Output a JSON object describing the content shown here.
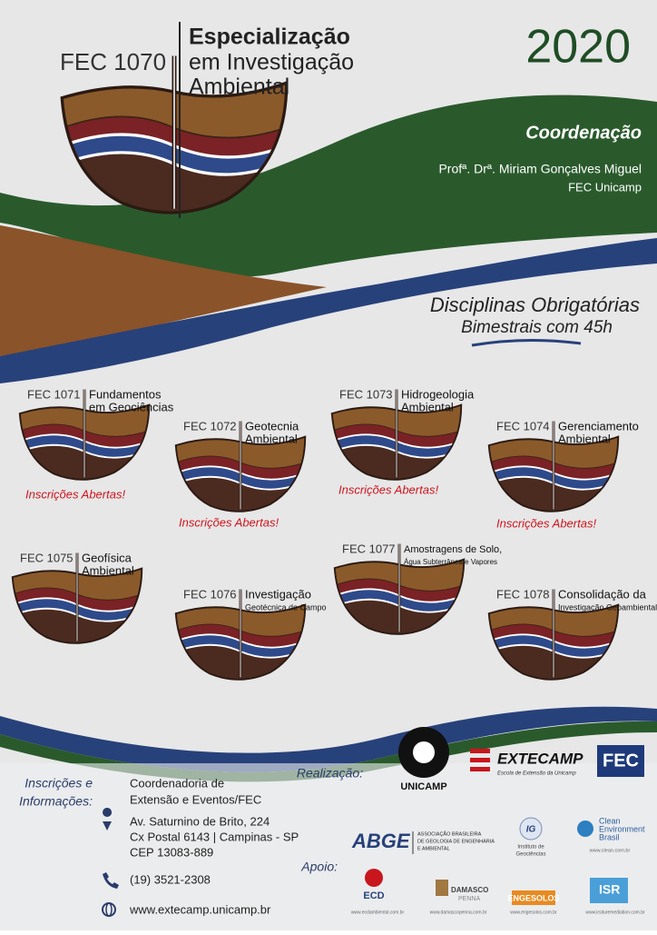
{
  "header": {
    "code": "FEC 1070",
    "title": [
      "Especialização",
      "em Investigação",
      "Ambiental"
    ],
    "year": "2020"
  },
  "coordination": {
    "label": "Coordenação",
    "name": "Profª. Drª. Miriam Gonçalves Miguel",
    "org": "FEC Unicamp"
  },
  "disciplines": {
    "title": "Disciplinas Obrigatórias",
    "subtitle": "Bimestrais com 45h"
  },
  "courses": [
    {
      "code": "FEC 1071",
      "name": [
        "Fundamentos",
        "em Geociências"
      ],
      "status": "Inscrições Abertas!"
    },
    {
      "code": "FEC 1072",
      "name": [
        "Geotecnia",
        "Ambiental"
      ],
      "status": "Inscrições Abertas!"
    },
    {
      "code": "FEC 1073",
      "name": [
        "Hidrogeologia",
        "Ambiental"
      ],
      "status": "Inscrições Abertas!"
    },
    {
      "code": "FEC 1074",
      "name": [
        "Gerenciamento",
        "Ambiental"
      ],
      "status": "Inscrições Abertas!"
    },
    {
      "code": "FEC 1075",
      "name": [
        "Geofísica",
        "Ambiental"
      ]
    },
    {
      "code": "FEC 1076",
      "name": [
        "Investigação",
        "Geotécnica de Campo"
      ]
    },
    {
      "code": "FEC 1077",
      "name": [
        "Amostragens de Solo,",
        "Água Subterrânea e Vapores"
      ]
    },
    {
      "code": "FEC 1078",
      "name": [
        "Consolidação da",
        "Investigação Geoambiental"
      ]
    }
  ],
  "contact": {
    "label": [
      "Inscrições e",
      "Informações:"
    ],
    "org": [
      "Coordenadoria de",
      "Extensão e Eventos/FEC"
    ],
    "address": [
      "Av. Saturnino de Brito, 224",
      "Cx Postal 6143 | Campinas - SP",
      "CEP 13083-889"
    ],
    "phone": "(19) 3521-2308",
    "web": "www.extecamp.unicamp.br"
  },
  "realization": {
    "label": "Realização:",
    "logos": [
      "UNICAMP",
      "EXTECAMP",
      "Escola de Extensão da Unicamp",
      "FEC"
    ]
  },
  "support": {
    "label": "Apoio:",
    "abge": [
      "ABGE",
      "ASSOCIAÇÃO BRASILEIRA",
      "DE GEOLOGIA DE ENGENHARIA",
      "E AMBIENTAL"
    ],
    "ig": [
      "IG",
      "Instituto de",
      "Geociências"
    ],
    "clean": [
      "Clean",
      "Environment",
      "Brasil",
      "www.clean.com.br"
    ],
    "ecd": [
      "ECD",
      "www.ecdambiental.com.br"
    ],
    "damasco": [
      "DAMASCO",
      "PENNA",
      "www.damascopenna.com.br"
    ],
    "engesolos": [
      "ENGESOLOS",
      "www.engesolos.com.br"
    ],
    "isr": [
      "ISR",
      "www.irsituremediation.com.br"
    ]
  }
}
